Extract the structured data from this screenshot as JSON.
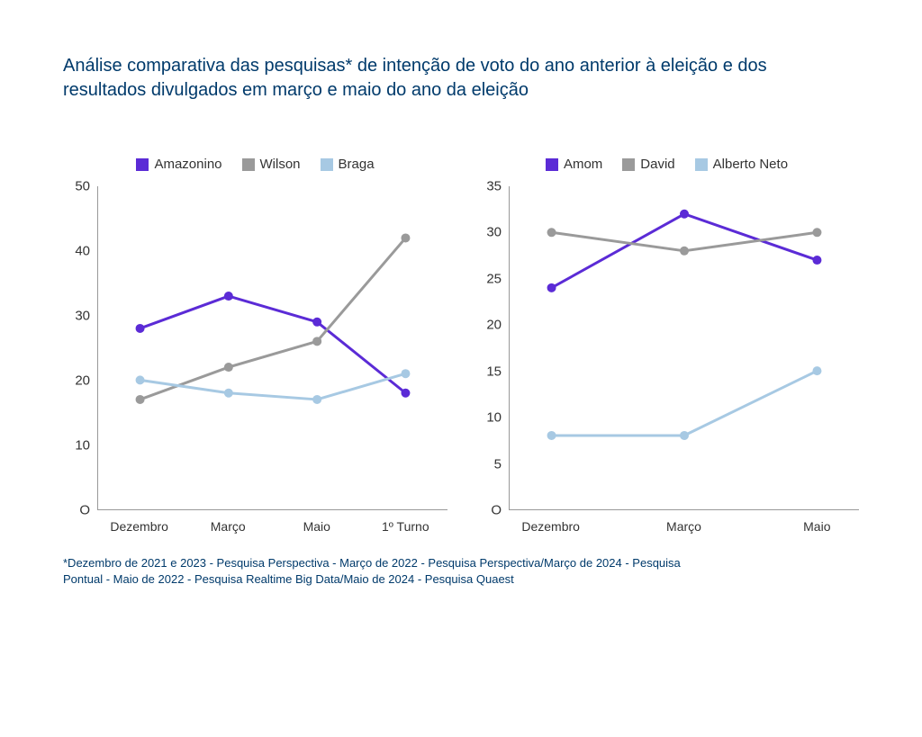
{
  "title": "Análise comparativa das pesquisas* de intenção de voto do ano anterior à eleição e dos resultados divulgados em março e maio do ano da eleição",
  "footnote": "*Dezembro de 2021 e 2023 - Pesquisa Perspectiva - Março de 2022 - Pesquisa Perspectiva/Março de 2024 - Pesquisa Pontual - Maio de 2022 - Pesquisa Realtime Big Data/Maio de 2024 - Pesquisa Quaest",
  "colors": {
    "title_text": "#003a6b",
    "axis_line": "#999999",
    "axis_label": "#333333",
    "background": "#ffffff"
  },
  "chart_left": {
    "type": "line",
    "legend": [
      {
        "label": "Amazonino",
        "color": "#5b2bd6"
      },
      {
        "label": "Wilson",
        "color": "#9a9a9a"
      },
      {
        "label": "Braga",
        "color": "#a7c9e3"
      }
    ],
    "categories": [
      "Dezembro",
      "Março",
      "Maio",
      "1º Turno"
    ],
    "ylim": [
      0,
      50
    ],
    "ytick_step": 10,
    "series": [
      {
        "name": "Amazonino",
        "color": "#5b2bd6",
        "values": [
          28,
          33,
          29,
          18
        ],
        "line_width": 3,
        "marker_radius": 5
      },
      {
        "name": "Wilson",
        "color": "#9a9a9a",
        "values": [
          17,
          22,
          26,
          42
        ],
        "line_width": 3,
        "marker_radius": 5
      },
      {
        "name": "Braga",
        "color": "#a7c9e3",
        "values": [
          20,
          18,
          17,
          21
        ],
        "line_width": 3,
        "marker_radius": 5
      }
    ],
    "tick_fontsize": 15,
    "label_fontsize": 14
  },
  "chart_right": {
    "type": "line",
    "legend": [
      {
        "label": "Amom",
        "color": "#5b2bd6"
      },
      {
        "label": "David",
        "color": "#9a9a9a"
      },
      {
        "label": "Alberto Neto",
        "color": "#a7c9e3"
      }
    ],
    "categories": [
      "Dezembro",
      "Março",
      "Maio"
    ],
    "ylim": [
      0,
      35
    ],
    "ytick_step": 5,
    "series": [
      {
        "name": "Amom",
        "color": "#5b2bd6",
        "values": [
          24,
          32,
          27
        ],
        "line_width": 3,
        "marker_radius": 5
      },
      {
        "name": "David",
        "color": "#9a9a9a",
        "values": [
          30,
          28,
          30
        ],
        "line_width": 3,
        "marker_radius": 5
      },
      {
        "name": "Alberto Neto",
        "color": "#a7c9e3",
        "values": [
          8,
          8,
          15
        ],
        "line_width": 3,
        "marker_radius": 5
      }
    ],
    "tick_fontsize": 15,
    "label_fontsize": 14
  }
}
